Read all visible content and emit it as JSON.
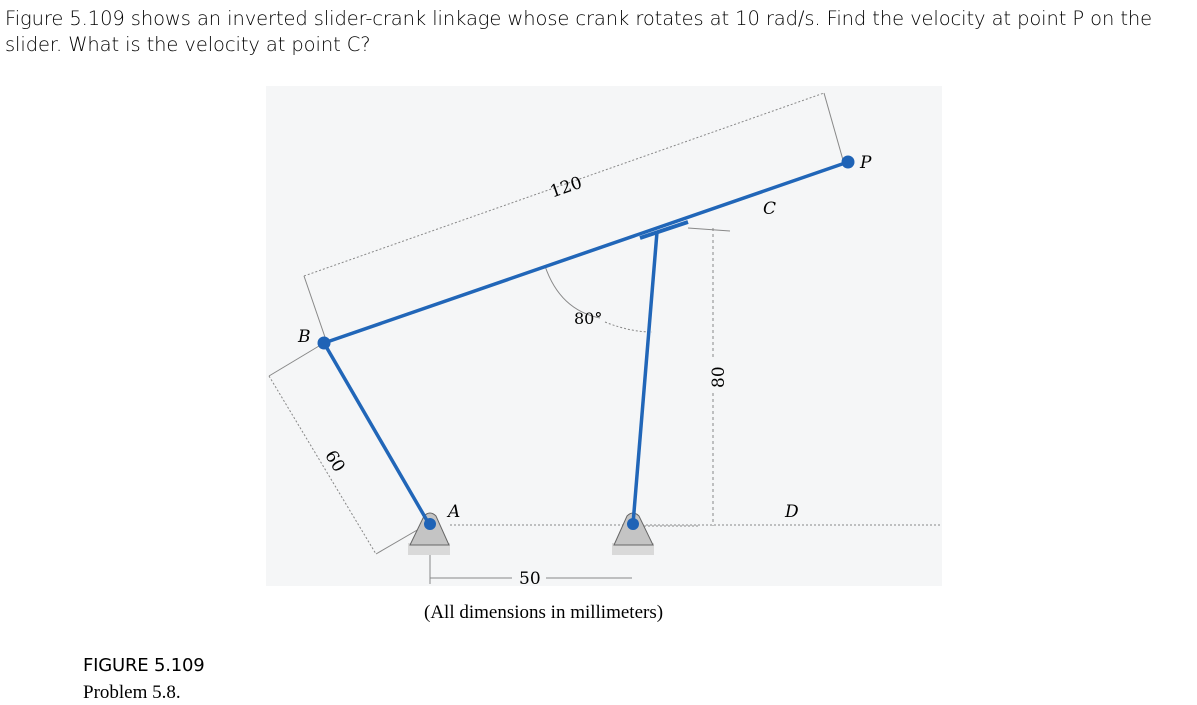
{
  "problem": {
    "text": "Figure 5.109 shows an inverted slider-crank linkage whose crank rotates at 10 rad/s.  Find the velocity at point P on the slider. What is the velocity at point C?"
  },
  "figure": {
    "labels": {
      "B": "B",
      "A": "A",
      "C": "C",
      "D": "D",
      "P": "P"
    },
    "dimensions": {
      "length_bp": "120",
      "length_ab": "60",
      "ground_spacing": "50",
      "rocker_height": "80",
      "angle": "80°"
    },
    "units_note": "(All dimensions in millimeters)",
    "colors": {
      "link": "#2166b8",
      "pin": "#1f63b6",
      "support": "#c4c4c4",
      "background": "#f5f6f7"
    }
  },
  "caption": {
    "label": "FIGURE 5.109",
    "sub": "Problem 5.8."
  }
}
